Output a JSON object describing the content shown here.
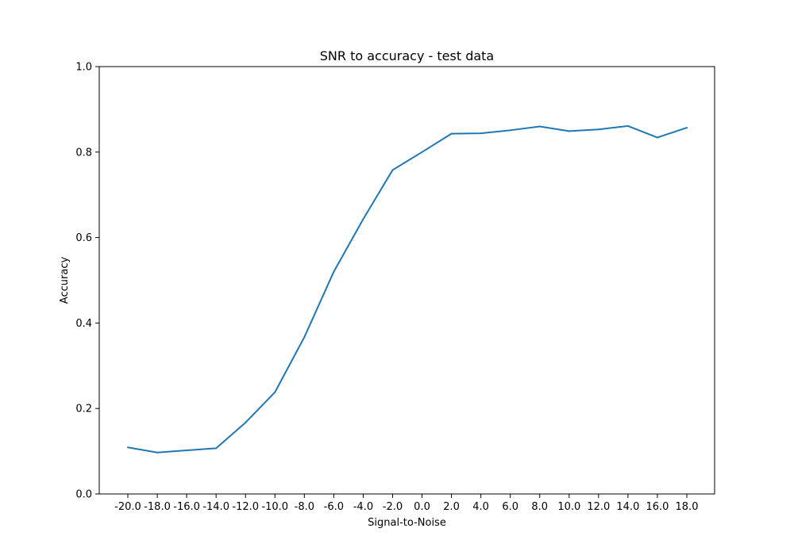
{
  "chart_data": {
    "type": "line",
    "title": "SNR to accuracy - test data",
    "xlabel": "Signal-to-Noise",
    "ylabel": "Accuracy",
    "x": [
      "-20.0",
      "-18.0",
      "-16.0",
      "-14.0",
      "-12.0",
      "-10.0",
      "-8.0",
      "-6.0",
      "-4.0",
      "-2.0",
      "0.0",
      "2.0",
      "4.0",
      "6.0",
      "8.0",
      "10.0",
      "12.0",
      "14.0",
      "16.0",
      "18.0"
    ],
    "series": [
      {
        "values": [
          0.109,
          0.097,
          0.102,
          0.107,
          0.167,
          0.238,
          0.367,
          0.52,
          0.643,
          0.758,
          0.8,
          0.843,
          0.844,
          0.851,
          0.86,
          0.849,
          0.853,
          0.861,
          0.834,
          0.857
        ]
      }
    ],
    "ylim": [
      0.0,
      1.0
    ],
    "yticks": [
      "0.0",
      "0.2",
      "0.4",
      "0.6",
      "0.8",
      "1.0"
    ],
    "grid": false,
    "line_color": "#1f77b4"
  }
}
